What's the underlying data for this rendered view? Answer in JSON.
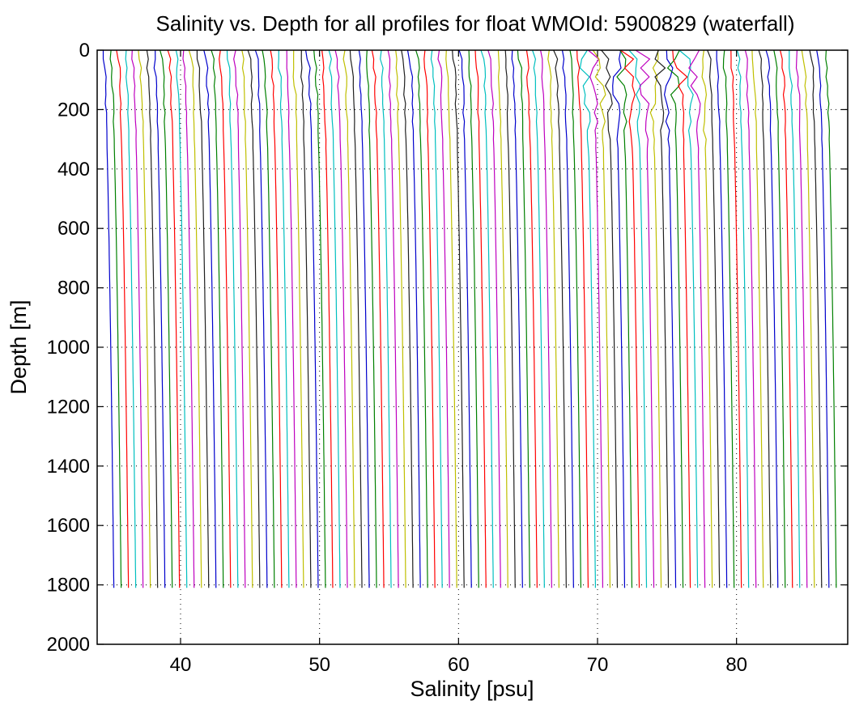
{
  "chart_data": {
    "type": "line",
    "title": "Salinity vs. Depth for all profiles for float WMOId: 5900829 (waterfall)",
    "xlabel": "Salinity [psu]",
    "ylabel": "Depth [m]",
    "xlim": [
      34,
      88
    ],
    "ylim": [
      0,
      2000
    ],
    "y_reversed": true,
    "x_ticks": [
      40,
      50,
      60,
      70,
      80
    ],
    "y_ticks": [
      0,
      200,
      400,
      600,
      800,
      1000,
      1200,
      1400,
      1600,
      1800,
      2000
    ],
    "grid": "dotted",
    "series_colors": [
      "#0000cc",
      "#008000",
      "#ff0000",
      "#00bfbf",
      "#bf00bf",
      "#bfbf00",
      "#202020"
    ],
    "waterfall": {
      "profile_count": 100,
      "surface_salinity_first": 34.4,
      "surface_salinity_step": 0.525,
      "deep_salinity_first": 35.2,
      "deep_salinity_step": 0.525,
      "max_depth": 1810
    },
    "profiles_sample": [
      {
        "profile": 1,
        "points": [
          [
            34.4,
            0
          ],
          [
            34.6,
            100
          ],
          [
            34.75,
            300
          ],
          [
            34.95,
            600
          ],
          [
            35.1,
            1000
          ],
          [
            35.2,
            1810
          ]
        ]
      },
      {
        "profile": 50,
        "points": [
          [
            60.1,
            0
          ],
          [
            60.3,
            100
          ],
          [
            60.5,
            300
          ],
          [
            60.7,
            600
          ],
          [
            60.85,
            1000
          ],
          [
            60.95,
            1810
          ]
        ]
      },
      {
        "profile": 100,
        "points": [
          [
            86.4,
            0
          ],
          [
            86.6,
            100
          ],
          [
            86.8,
            300
          ],
          [
            87.0,
            600
          ],
          [
            87.1,
            1000
          ],
          [
            87.2,
            1810
          ]
        ]
      }
    ]
  }
}
